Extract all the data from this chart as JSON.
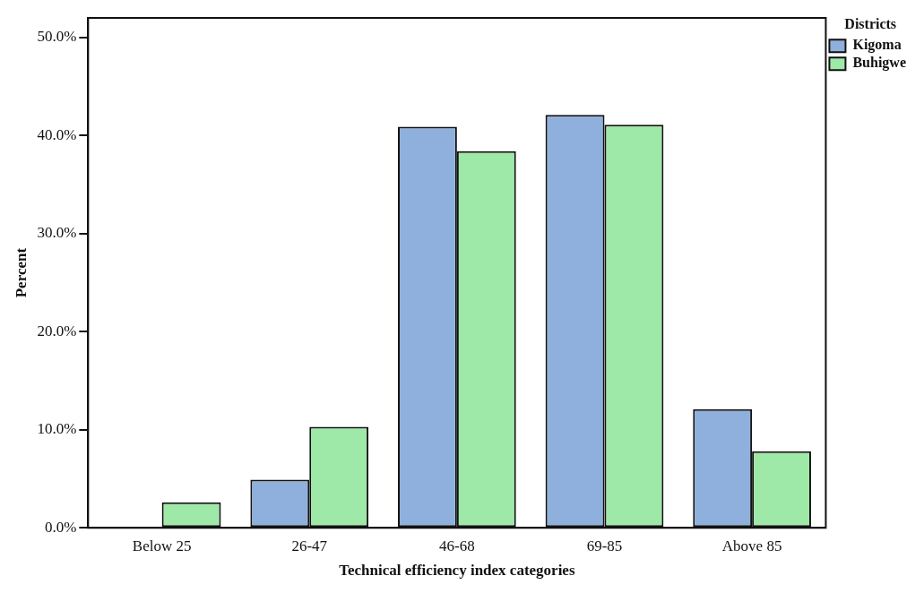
{
  "chart_data": {
    "type": "bar",
    "xlabel": "Technical efficiency index categories",
    "ylabel": "Percent",
    "legend_title": "Districts",
    "categories": [
      "Below 25",
      "26-47",
      "46-68",
      "69-85",
      "Above 85"
    ],
    "series": [
      {
        "name": "Kigoma",
        "color": "#8fb0dc",
        "values": [
          0,
          4.9,
          40.9,
          42.1,
          12.1
        ]
      },
      {
        "name": "Buhigwe",
        "color": "#9ee8a8",
        "values": [
          2.6,
          10.3,
          38.4,
          41.1,
          7.8
        ]
      }
    ],
    "ylim": [
      0,
      52
    ],
    "yticks": [
      {
        "value": 0,
        "label": "0.0%"
      },
      {
        "value": 10,
        "label": "10.0%"
      },
      {
        "value": 20,
        "label": "20.0%"
      },
      {
        "value": 30,
        "label": "30.0%"
      },
      {
        "value": 40,
        "label": "40.0%"
      },
      {
        "value": 50,
        "label": "50.0%"
      }
    ],
    "grid": false,
    "legend": "top right"
  }
}
